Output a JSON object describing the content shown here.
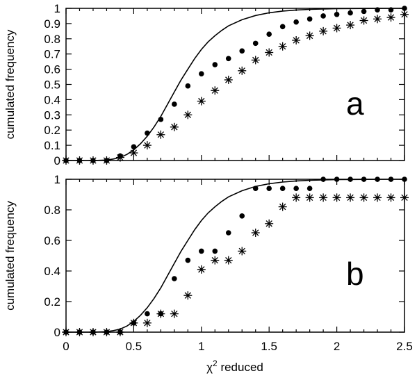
{
  "chart_data": [
    {
      "type": "scatter",
      "panel_label": "a",
      "ylabel": "cumulated frequency",
      "xlim": [
        0,
        2.5
      ],
      "ylim": [
        0,
        1
      ],
      "yticks": [
        "0",
        "0.1",
        "0.2",
        "0.3",
        "0.4",
        "0.5",
        "0.6",
        "0.7",
        "0.8",
        "0.9",
        "1"
      ],
      "grid": false,
      "series": [
        {
          "marker": "dot",
          "x": [
            0,
            0.1,
            0.2,
            0.3,
            0.4,
            0.5,
            0.6,
            0.7,
            0.8,
            0.9,
            1.0,
            1.1,
            1.2,
            1.3,
            1.4,
            1.5,
            1.6,
            1.7,
            1.8,
            1.9,
            2.0,
            2.1,
            2.2,
            2.3,
            2.4,
            2.5
          ],
          "y": [
            0,
            0,
            0,
            0,
            0.03,
            0.09,
            0.18,
            0.27,
            0.37,
            0.49,
            0.57,
            0.63,
            0.67,
            0.72,
            0.77,
            0.83,
            0.88,
            0.91,
            0.93,
            0.95,
            0.96,
            0.97,
            0.98,
            0.99,
            0.99,
            1.0
          ]
        },
        {
          "marker": "star",
          "x": [
            0,
            0.1,
            0.2,
            0.3,
            0.4,
            0.5,
            0.6,
            0.7,
            0.8,
            0.9,
            1.0,
            1.1,
            1.2,
            1.3,
            1.4,
            1.5,
            1.6,
            1.7,
            1.8,
            1.9,
            2.0,
            2.1,
            2.2,
            2.3,
            2.4,
            2.5
          ],
          "y": [
            0,
            0,
            0,
            0,
            0.02,
            0.05,
            0.1,
            0.17,
            0.22,
            0.3,
            0.39,
            0.46,
            0.53,
            0.59,
            0.66,
            0.71,
            0.75,
            0.79,
            0.82,
            0.85,
            0.87,
            0.89,
            0.92,
            0.93,
            0.94,
            0.96
          ]
        },
        {
          "marker": "line",
          "x": [
            0,
            0.1,
            0.2,
            0.3,
            0.35,
            0.4,
            0.45,
            0.5,
            0.55,
            0.6,
            0.65,
            0.7,
            0.75,
            0.8,
            0.85,
            0.9,
            0.95,
            1.0,
            1.05,
            1.1,
            1.15,
            1.2,
            1.3,
            1.4,
            1.5,
            1.6,
            1.7,
            1.8,
            1.9,
            2.0,
            2.2,
            2.4,
            2.5
          ],
          "y": [
            0,
            0,
            0,
            0.003,
            0.01,
            0.02,
            0.04,
            0.07,
            0.11,
            0.16,
            0.22,
            0.29,
            0.37,
            0.45,
            0.53,
            0.6,
            0.67,
            0.73,
            0.78,
            0.82,
            0.855,
            0.885,
            0.925,
            0.953,
            0.971,
            0.982,
            0.989,
            0.993,
            0.996,
            0.998,
            0.999,
            1.0,
            1.0
          ]
        }
      ]
    },
    {
      "type": "scatter",
      "panel_label": "b",
      "ylabel": "cumulated frequency",
      "xlabel_main": "χ",
      "xlabel_sup": "2",
      "xlabel_rest": " reduced",
      "xlim": [
        0,
        2.5
      ],
      "ylim": [
        0,
        1
      ],
      "xticks": [
        "0",
        "0.5",
        "1",
        "1.5",
        "2",
        "2.5"
      ],
      "yticks": [
        "0",
        "0.2",
        "0.4",
        "0.6",
        "0.8",
        "1"
      ],
      "grid": false,
      "series": [
        {
          "marker": "dot",
          "x": [
            0,
            0.1,
            0.2,
            0.3,
            0.4,
            0.5,
            0.6,
            0.7,
            0.8,
            0.9,
            1.0,
            1.1,
            1.2,
            1.3,
            1.4,
            1.5,
            1.6,
            1.7,
            1.8,
            1.9,
            2.0,
            2.1,
            2.2,
            2.3,
            2.4,
            2.5
          ],
          "y": [
            0,
            0,
            0,
            0,
            0,
            0.06,
            0.12,
            0.12,
            0.35,
            0.47,
            0.53,
            0.53,
            0.65,
            0.76,
            0.94,
            0.94,
            0.94,
            0.94,
            0.94,
            1.0,
            1.0,
            1.0,
            1.0,
            1.0,
            1.0,
            1.0
          ]
        },
        {
          "marker": "star",
          "x": [
            0,
            0.1,
            0.2,
            0.3,
            0.4,
            0.5,
            0.6,
            0.7,
            0.8,
            0.9,
            1.0,
            1.1,
            1.2,
            1.3,
            1.4,
            1.5,
            1.6,
            1.7,
            1.8,
            1.9,
            2.0,
            2.1,
            2.2,
            2.3,
            2.4,
            2.5
          ],
          "y": [
            0,
            0,
            0,
            0,
            0,
            0.06,
            0.06,
            0.12,
            0.12,
            0.24,
            0.41,
            0.47,
            0.47,
            0.53,
            0.65,
            0.71,
            0.82,
            0.88,
            0.88,
            0.88,
            0.88,
            0.88,
            0.88,
            0.88,
            0.88,
            0.88
          ]
        },
        {
          "marker": "line",
          "x": [
            0,
            0.1,
            0.2,
            0.3,
            0.35,
            0.4,
            0.45,
            0.5,
            0.55,
            0.6,
            0.65,
            0.7,
            0.75,
            0.8,
            0.85,
            0.9,
            0.95,
            1.0,
            1.05,
            1.1,
            1.15,
            1.2,
            1.3,
            1.4,
            1.5,
            1.6,
            1.7,
            1.8,
            1.9,
            2.0,
            2.2,
            2.4,
            2.5
          ],
          "y": [
            0,
            0,
            0,
            0.003,
            0.01,
            0.02,
            0.04,
            0.07,
            0.11,
            0.16,
            0.22,
            0.29,
            0.37,
            0.45,
            0.53,
            0.6,
            0.67,
            0.73,
            0.78,
            0.82,
            0.855,
            0.885,
            0.925,
            0.953,
            0.971,
            0.982,
            0.989,
            0.993,
            0.996,
            0.998,
            0.999,
            1.0,
            1.0
          ]
        }
      ]
    }
  ]
}
